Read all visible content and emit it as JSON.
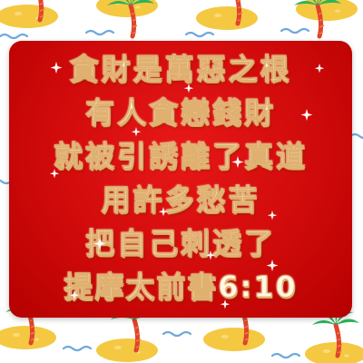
{
  "verse": {
    "lines": [
      "貪財是萬惡之根",
      "有人貪戀錢財",
      "就被引誘離了真道",
      "用許多愁苦",
      "把自己刺透了"
    ],
    "reference": "提摩太前書6:10"
  },
  "colors": {
    "card": "#d80f0f",
    "text": "#fff6e6",
    "text_outline": "#d89a4c",
    "island_sand": "#f5c842",
    "palm_leaf": "#2bb35a",
    "palm_trunk": "#e0442a",
    "water": "#6fa8dc"
  },
  "background": {
    "pattern": "palm-tree-island-icon"
  }
}
